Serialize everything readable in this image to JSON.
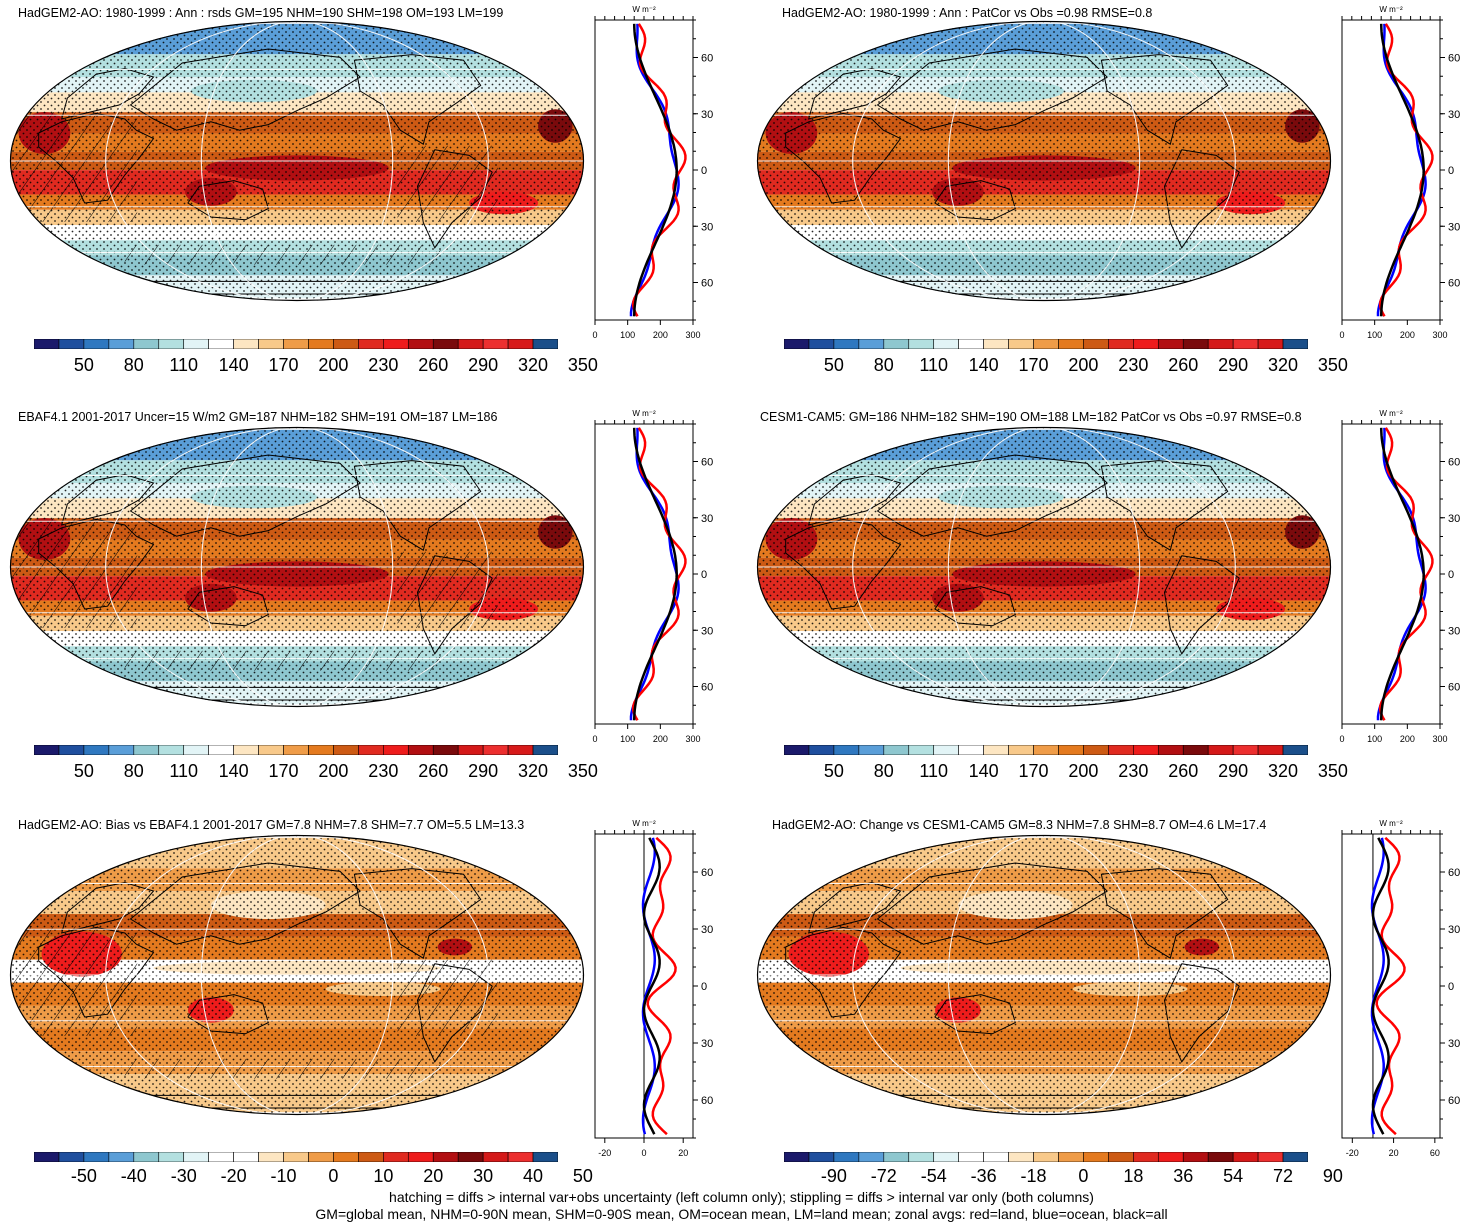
{
  "panels": [
    {
      "title": "HadGEM2-AO: 1980-1999 : Ann : rsds GM=195 NHM=190 SHM=198 OM=193 LM=199",
      "map_kind": "absolute",
      "hatching": true,
      "cbar_labels": [
        "50",
        "80",
        "110",
        "140",
        "170",
        "200",
        "230",
        "260",
        "290",
        "320",
        "350"
      ],
      "zonal_ticks_x": [
        "0",
        "100",
        "200",
        "300"
      ],
      "zonal_xlim": [
        0,
        300
      ],
      "zonal_lat_labels": [
        "60N",
        "30N",
        "0",
        "30S",
        "60S"
      ],
      "zonal_unit": "W m⁻²"
    },
    {
      "title": "HadGEM2-AO: 1980-1999 : Ann : PatCor vs Obs =0.98 RMSE=0.8",
      "map_kind": "absolute",
      "hatching": false,
      "cbar_labels": [
        "50",
        "80",
        "110",
        "140",
        "170",
        "200",
        "230",
        "260",
        "290",
        "320",
        "350"
      ],
      "zonal_ticks_x": [
        "0",
        "100",
        "200",
        "300"
      ],
      "zonal_xlim": [
        0,
        300
      ],
      "zonal_lat_labels": [
        "60N",
        "30N",
        "0",
        "30S",
        "60S"
      ],
      "zonal_unit": "W m⁻²"
    },
    {
      "title": "EBAF4.1 2001-2017 Uncer=15 W/m2 GM=187 NHM=182 SHM=191 OM=187 LM=186",
      "map_kind": "absolute",
      "hatching": true,
      "cbar_labels": [
        "50",
        "80",
        "110",
        "140",
        "170",
        "200",
        "230",
        "260",
        "290",
        "320",
        "350"
      ],
      "zonal_ticks_x": [
        "0",
        "100",
        "200",
        "300"
      ],
      "zonal_xlim": [
        0,
        300
      ],
      "zonal_lat_labels": [
        "60N",
        "30N",
        "0",
        "30S",
        "60S"
      ],
      "zonal_unit": "W m⁻²"
    },
    {
      "title": "CESM1-CAM5: GM=186 NHM=182 SHM=190 OM=188 LM=182 PatCor vs Obs =0.97 RMSE=0.8",
      "map_kind": "absolute",
      "hatching": false,
      "cbar_labels": [
        "50",
        "80",
        "110",
        "140",
        "170",
        "200",
        "230",
        "260",
        "290",
        "320",
        "350"
      ],
      "zonal_ticks_x": [
        "0",
        "100",
        "200",
        "300"
      ],
      "zonal_xlim": [
        0,
        300
      ],
      "zonal_lat_labels": [
        "60N",
        "30N",
        "0",
        "30S",
        "60S"
      ],
      "zonal_unit": "W m⁻²"
    },
    {
      "title": "HadGEM2-AO: Bias vs EBAF4.1 2001-2017 GM=7.8 NHM=7.8 SHM=7.7 OM=5.5 LM=13.3",
      "map_kind": "diff",
      "hatching": true,
      "cbar_labels": [
        "-50",
        "-40",
        "-30",
        "-20",
        "-10",
        "0",
        "10",
        "20",
        "30",
        "40",
        "50"
      ],
      "zonal_ticks_x": [
        "-20",
        "0",
        "20"
      ],
      "zonal_xlim": [
        -25,
        25
      ],
      "zonal_lat_labels": [
        "60N",
        "30N",
        "0",
        "30S",
        "60S"
      ],
      "zonal_unit": "W m⁻²"
    },
    {
      "title": "HadGEM2-AO: Change vs CESM1-CAM5 GM=8.3 NHM=7.8 SHM=8.7 OM=4.6 LM=17.4",
      "map_kind": "diff",
      "hatching": false,
      "cbar_labels": [
        "-90",
        "-72",
        "-54",
        "-36",
        "-18",
        "0",
        "18",
        "36",
        "54",
        "72",
        "90"
      ],
      "zonal_ticks_x": [
        "-20",
        "20",
        "60"
      ],
      "zonal_xlim": [
        -30,
        65
      ],
      "zonal_lat_labels": [
        "60N",
        "30N",
        "0",
        "30S",
        "60S"
      ],
      "zonal_unit": "W m⁻²"
    }
  ],
  "colors": {
    "absolute_palette": [
      "#1b1a6b",
      "#1f4f9e",
      "#2f78c0",
      "#5a9ed8",
      "#8ec7cf",
      "#b3e0e0",
      "#e2f4f6",
      "#ffffff",
      "#fde6c2",
      "#f8c98a",
      "#ef9c48",
      "#e47a1f",
      "#cd5a14",
      "#e02a20",
      "#ee1c1c",
      "#b20f12",
      "#7a0a0c",
      "#d41919",
      "#ec2f2f",
      "#d71a1a",
      "#1b4f8a"
    ],
    "diff_palette": [
      "#1b1a6b",
      "#1f4f9e",
      "#2f78c0",
      "#5a9ed8",
      "#8ec7cf",
      "#b3e0e0",
      "#e2f4f6",
      "#ffffff",
      "#ffffff",
      "#fde6c2",
      "#f8c98a",
      "#ef9c48",
      "#e47a1f",
      "#cd5a14",
      "#e02a20",
      "#ee1c1c",
      "#b20f12",
      "#7a0a0c",
      "#d41919",
      "#ec2f2f",
      "#1b4f8a"
    ],
    "zonal_land": "#ff0000",
    "zonal_ocean": "#0000ff",
    "zonal_all": "#000000"
  },
  "footer": {
    "line1": "hatching = diffs > internal var+obs uncertainty (left column only); stippling = diffs > internal var only (both columns)",
    "line2": "GM=global mean, NHM=0-90N mean, SHM=0-90S mean, OM=ocean mean, LM=land mean; zonal avgs: red=land, blue=ocean, black=all"
  }
}
